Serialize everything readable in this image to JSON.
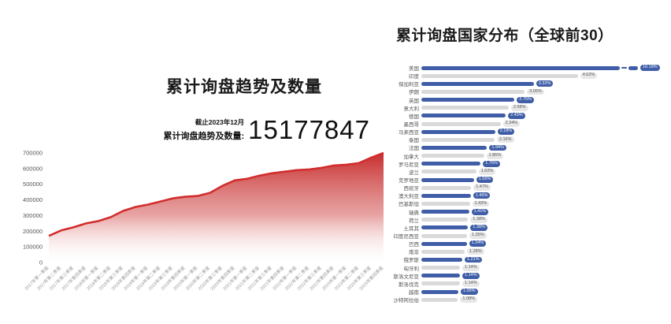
{
  "left_chart": {
    "title": "累计询盘趋势及数量",
    "note_date": "截止2023年12月",
    "note_label": "累计询盘趋势及数量:",
    "total_value": "15177847"
  },
  "right_chart": {
    "title": "累计询盘国家分布（全球前30）"
  },
  "colors": {
    "area_line": "#d22d2d",
    "area_fill_top": "#c52828",
    "bar_blue": "#3f5ea7",
    "bar_gray": "#d9d9d9",
    "badge_blue_bg": "#3f5ea7",
    "badge_gray_bg": "#e7e7e7",
    "axis_text": "#555555",
    "xtick_text": "#999999"
  },
  "chart_data": [
    {
      "type": "area",
      "title": "累计询盘趋势及数量",
      "x": [
        "2017年第一季度",
        "2017年第二季度",
        "2017年第三季度",
        "2017年第四季度",
        "2018年第一季度",
        "2018年第二季度",
        "2018年第三季度",
        "2018年第四季度",
        "2019年第一季度",
        "2019年第二季度",
        "2019年第三季度",
        "2019年第四季度",
        "2020年第一季度",
        "2020年第二季度",
        "2020年第三季度",
        "2020年第四季度",
        "2021年第一季度",
        "2021年第二季度",
        "2021年第三季度",
        "2021年第四季度",
        "2022年第一季度",
        "2022年第二季度",
        "2022年第三季度",
        "2022年第四季度",
        "2023年第一季度",
        "2023年第二季度",
        "2023年第三季度",
        "2023年第四季度"
      ],
      "values": [
        170000,
        205000,
        225000,
        250000,
        265000,
        290000,
        330000,
        355000,
        370000,
        390000,
        410000,
        420000,
        425000,
        445000,
        490000,
        525000,
        535000,
        555000,
        570000,
        580000,
        590000,
        595000,
        605000,
        620000,
        625000,
        635000,
        670000,
        700000
      ],
      "ylim": [
        0,
        700000
      ],
      "yticks": [
        0,
        100000,
        200000,
        300000,
        400000,
        500000,
        600000,
        700000
      ],
      "grid": false,
      "legend": "none",
      "annotation_total": "15177847"
    },
    {
      "type": "bar",
      "orientation": "horizontal",
      "title": "累计询盘国家分布（全球前30）",
      "categories": [
        "美国",
        "印度",
        "保加利亚",
        "伊朗",
        "英国",
        "意大利",
        "德国",
        "墨西哥",
        "马来西亚",
        "泰国",
        "法国",
        "加拿大",
        "罗马尼亚",
        "波兰",
        "克罗地亚",
        "西班牙",
        "澳大利亚",
        "巴基斯坦",
        "瑞典",
        "荷兰",
        "土耳其",
        "印度尼西亚",
        "巴西",
        "南非",
        "俄罗斯",
        "匈牙利",
        "斯洛文尼亚",
        "斯洛伐克",
        "越南",
        "沙特阿拉伯"
      ],
      "values": [
        10.18,
        4.62,
        3.32,
        3.05,
        2.75,
        2.58,
        2.49,
        2.34,
        2.18,
        2.16,
        1.94,
        1.85,
        1.75,
        1.62,
        1.55,
        1.47,
        1.46,
        1.43,
        1.41,
        1.38,
        1.38,
        1.35,
        1.34,
        1.28,
        1.21,
        1.14,
        1.14,
        1.14,
        1.09,
        1.08
      ],
      "value_labels": [
        "10.18%",
        "4.62%",
        "3.32%",
        "3.05%",
        "2.75%",
        "2.58%",
        "2.49%",
        "2.34%",
        "2.18%",
        "2.16%",
        "1.94%",
        "1.85%",
        "1.75%",
        "1.62%",
        "1.55%",
        "1.47%",
        "1.46%",
        "1.43%",
        "1.41%",
        "1.38%",
        "1.38%",
        "1.35%",
        "1.34%",
        "1.28%",
        "1.21%",
        "1.14%",
        "1.14%",
        "1.14%",
        "1.09%",
        "1.08%"
      ],
      "axis_break_first_bar": true,
      "legend": "none",
      "xlim_note": "bar lengths truncated for first bar (axis break)"
    }
  ]
}
